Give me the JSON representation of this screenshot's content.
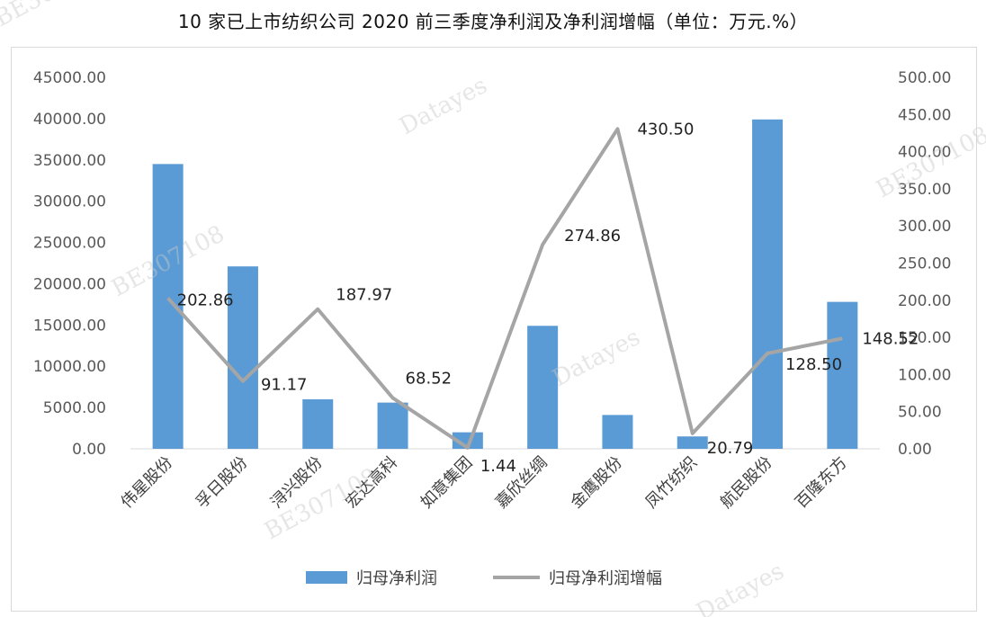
{
  "chart_data": {
    "type": "bar",
    "title": "10 家已上市纺织公司 2020 前三季度净利润及净利润增幅（单位：万元.%）",
    "categories": [
      "伟星股份",
      "孚日股份",
      "浔兴股份",
      "宏达高科",
      "如意集团",
      "嘉欣丝绸",
      "金鹰股份",
      "凤竹纺织",
      "航民股份",
      "百隆东方"
    ],
    "series": [
      {
        "name": "归母净利润",
        "type": "bar",
        "axis": "left",
        "color": "#5b9bd5",
        "values": [
          34500,
          22100,
          6000,
          5600,
          2000,
          14900,
          4100,
          1500,
          39900,
          17800
        ]
      },
      {
        "name": "归母净利润增幅",
        "type": "line",
        "axis": "right",
        "color": "#a5a5a5",
        "values": [
          202.86,
          91.17,
          187.97,
          68.52,
          1.44,
          274.86,
          430.5,
          20.79,
          128.5,
          148.52
        ],
        "labels": [
          "202.86",
          "91.17",
          "187.97",
          "68.52",
          "1.44",
          "274.86",
          "430.50",
          "20.79",
          "128.50",
          "148.52"
        ]
      }
    ],
    "left_axis": {
      "ylim": [
        0,
        45000
      ],
      "ticks": [
        "0.00",
        "5000.00",
        "10000.00",
        "15000.00",
        "20000.00",
        "25000.00",
        "30000.00",
        "35000.00",
        "40000.00",
        "45000.00"
      ]
    },
    "right_axis": {
      "ylim": [
        0,
        500
      ],
      "ticks": [
        "0.00",
        "50.00",
        "100.00",
        "150.00",
        "200.00",
        "250.00",
        "300.00",
        "350.00",
        "400.00",
        "450.00",
        "500.00"
      ]
    },
    "grid": false,
    "legend": "bottom"
  },
  "watermarks": [
    "Datayes",
    "BE307108"
  ]
}
